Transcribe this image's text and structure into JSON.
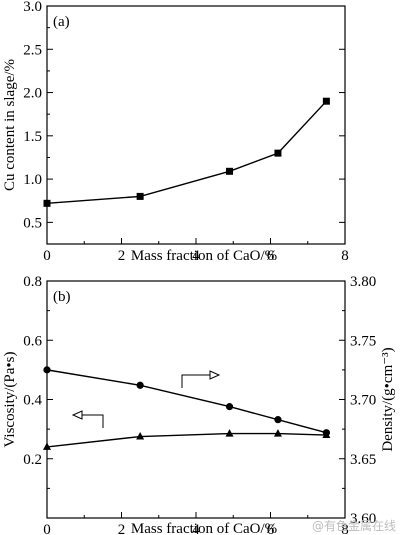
{
  "chart_data": [
    {
      "type": "line",
      "panel_label": "(a)",
      "xlabel": "Mass fraction of CaO/%",
      "ylabel": "Cu content in slage/%",
      "xlim": [
        0,
        8
      ],
      "ylim": [
        0.25,
        3.0
      ],
      "xticks": [
        "0",
        "2",
        "4",
        "6",
        "8"
      ],
      "yticks": [
        "0.5",
        "1.0",
        "1.5",
        "2.0",
        "2.5",
        "3.0"
      ],
      "grid": false,
      "series": [
        {
          "marker": "square",
          "color": "#000000",
          "x": [
            0,
            2.5,
            4.9,
            6.2,
            7.5
          ],
          "y": [
            0.72,
            0.8,
            1.09,
            1.3,
            1.9
          ]
        }
      ]
    },
    {
      "type": "line",
      "panel_label": "(b)",
      "xlabel": "Mass fraction of CaO/%",
      "ylabel": "Viscosity/(Pa•s)",
      "y2label": "Density/(g•cm⁻³)",
      "xlim": [
        0,
        8
      ],
      "ylim": [
        0.0,
        0.8
      ],
      "y2lim": [
        3.6,
        3.8
      ],
      "xticks": [
        "0",
        "2",
        "4",
        "6",
        "8"
      ],
      "yticks": [
        "0.2",
        "0.4",
        "0.6",
        "0.8"
      ],
      "y2ticks": [
        "3.60",
        "3.65",
        "3.70",
        "3.75",
        "3.80"
      ],
      "grid": false,
      "series": [
        {
          "marker": "triangle",
          "axis": "left",
          "color": "#000000",
          "x": [
            0,
            2.5,
            4.9,
            6.2,
            7.5
          ],
          "y": [
            0.24,
            0.275,
            0.285,
            0.285,
            0.28
          ]
        },
        {
          "marker": "circle",
          "axis": "right",
          "color": "#000000",
          "x": [
            0,
            2.5,
            4.9,
            6.2,
            7.5
          ],
          "y": [
            3.725,
            3.712,
            3.694,
            3.683,
            3.672
          ]
        }
      ]
    }
  ],
  "watermark": "@有色金属在线"
}
